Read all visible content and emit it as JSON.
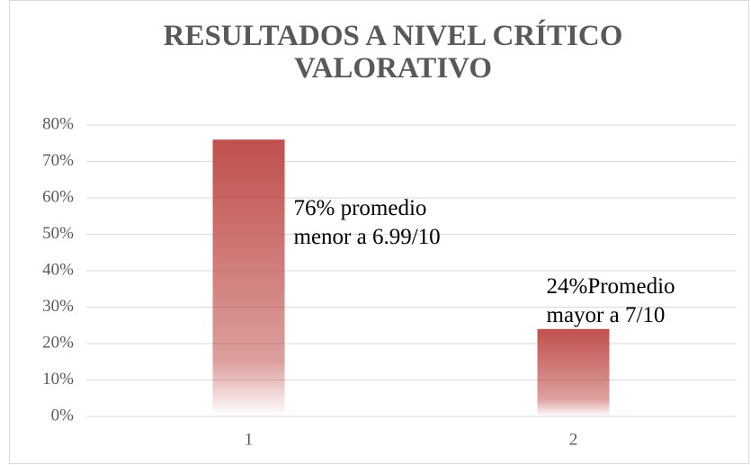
{
  "chart_data": {
    "type": "bar",
    "title": "RESULTADOS A NIVEL CRÍTICO VALORATIVO",
    "categories": [
      "1",
      "2"
    ],
    "values": [
      76,
      24
    ],
    "value_labels": [
      "76% promedio\nmenor a 6.99/10",
      "24%Promedio\nmayor a 7/10"
    ],
    "color": "#c0504d",
    "ylim": [
      0,
      80
    ],
    "yticks": [
      {
        "value": 0,
        "label": "0%"
      },
      {
        "value": 10,
        "label": "10%"
      },
      {
        "value": 20,
        "label": "20%"
      },
      {
        "value": 30,
        "label": "30%"
      },
      {
        "value": 40,
        "label": "40%"
      },
      {
        "value": 50,
        "label": "50%"
      },
      {
        "value": 60,
        "label": "60%"
      },
      {
        "value": 70,
        "label": "70%"
      },
      {
        "value": 80,
        "label": "80%"
      }
    ],
    "grid": true
  }
}
